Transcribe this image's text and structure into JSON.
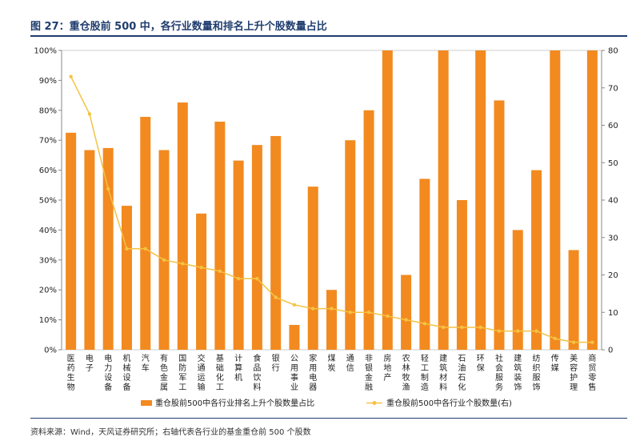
{
  "figure": {
    "title": "图 27：重仓股前 500 中，各行业数量和排名上升个股数量占比",
    "source": "资料来源：Wind，天风证券研究所；右轴代表各行业的基金重仓前 500 个股数"
  },
  "colors": {
    "bar": "#F28A20",
    "line": "#F5C242",
    "title": "#1f3d6e",
    "axis": "#888888"
  },
  "chart_data": {
    "type": "bar",
    "categories": [
      "医药生物",
      "电子",
      "电力设备",
      "机械设备",
      "汽车",
      "有色金属",
      "国防军工",
      "交通运输",
      "基础化工",
      "计算机",
      "食品饮料",
      "银行",
      "公用事业",
      "家用电器",
      "煤炭",
      "通信",
      "非银金融",
      "房地产",
      "农林牧渔",
      "轻工制造",
      "建筑材料",
      "石油石化",
      "环保",
      "社会服务",
      "建筑装饰",
      "纺织服饰",
      "传媒",
      "美容护理",
      "商贸零售"
    ],
    "series": [
      {
        "name": "重仓股前500中各行业排名上升个股数量占比",
        "type": "bar",
        "axis": "left",
        "values": [
          72.5,
          66.7,
          67.4,
          48.1,
          77.8,
          66.7,
          82.6,
          45.5,
          76.2,
          63.2,
          68.4,
          71.4,
          8.3,
          54.5,
          20,
          70,
          80,
          100,
          25,
          57.1,
          100,
          50,
          100,
          83.3,
          40,
          60,
          100,
          33.3,
          100
        ]
      },
      {
        "name": "重仓股前500中各行业个股数量(右)",
        "type": "line",
        "axis": "right",
        "values": [
          73,
          63,
          43,
          27,
          27,
          24,
          23,
          22,
          21,
          19,
          19,
          14,
          12,
          11,
          11,
          10,
          10,
          9,
          8,
          7,
          6,
          6,
          6,
          5,
          5,
          5,
          3,
          2,
          2
        ]
      }
    ],
    "y_left": {
      "min": 0,
      "max": 100,
      "ticks": [
        "0%",
        "10%",
        "20%",
        "30%",
        "40%",
        "50%",
        "60%",
        "70%",
        "80%",
        "90%",
        "100%"
      ]
    },
    "y_right": {
      "min": 0,
      "max": 80,
      "ticks": [
        "0",
        "10",
        "20",
        "30",
        "40",
        "50",
        "60",
        "70",
        "80"
      ]
    },
    "legend": {
      "position": "bottom",
      "bar_label": "重仓股前500中各行业排名上升个股数量占比",
      "line_label": "重仓股前500中各行业个股数量(右)"
    }
  }
}
